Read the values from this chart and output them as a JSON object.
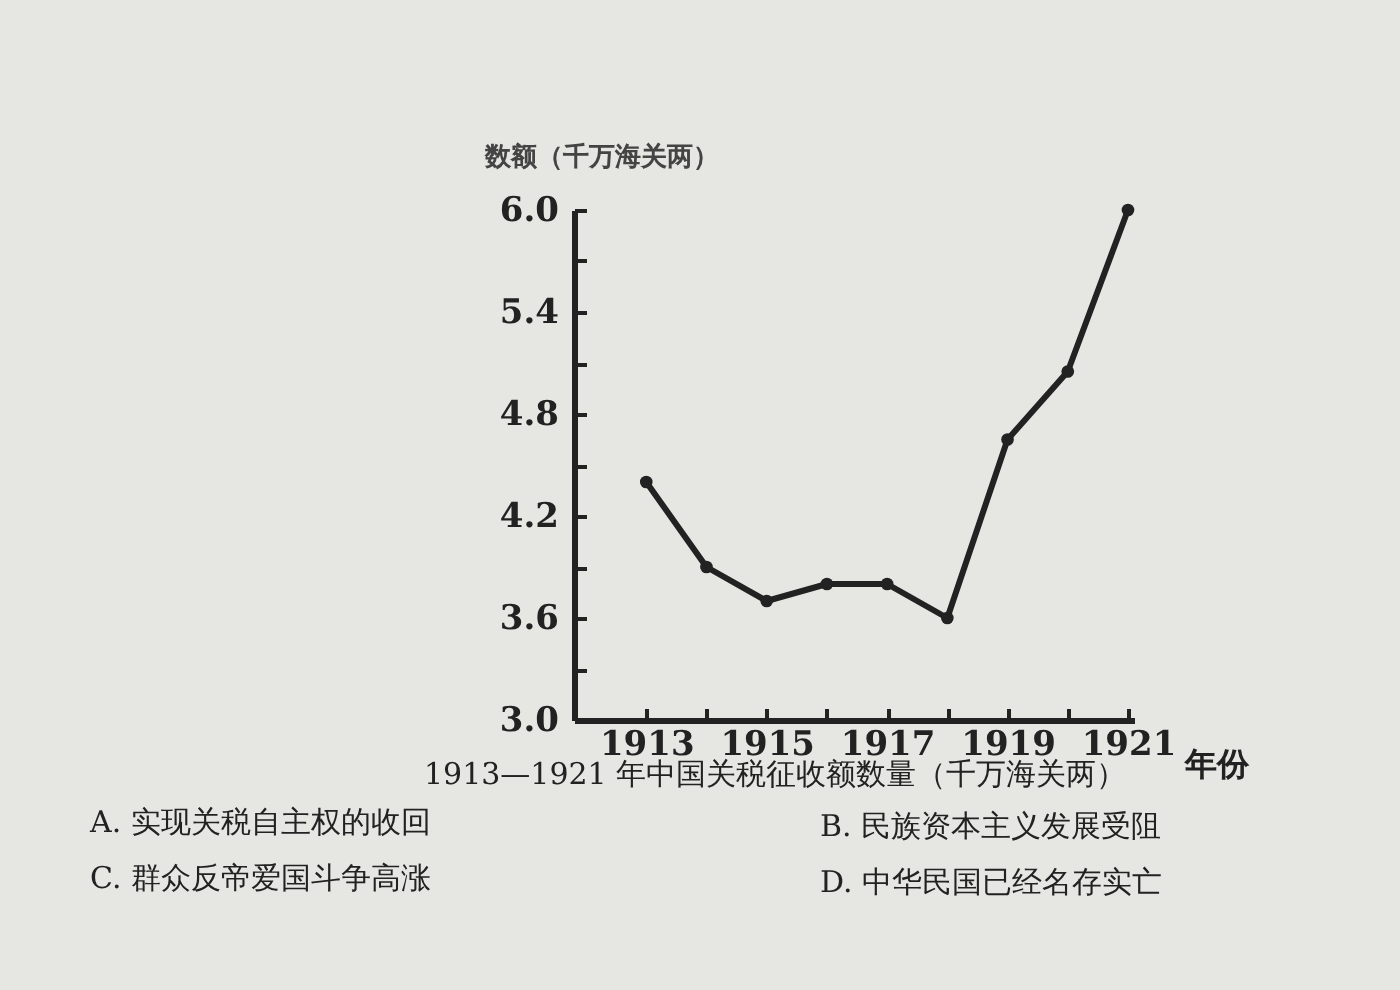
{
  "chart_data": {
    "type": "line",
    "ylabel": "数额（千万海关两）",
    "xlabel": "年份",
    "x": [
      1913,
      1914,
      1915,
      1916,
      1917,
      1918,
      1919,
      1920,
      1921
    ],
    "series": [
      {
        "color": "#222222",
        "values": [
          4.4,
          3.9,
          3.7,
          3.8,
          3.8,
          3.6,
          4.65,
          5.05,
          6.0
        ]
      }
    ],
    "xlim": [
      1911.8,
      1921.1
    ],
    "xticks": [
      1913,
      {
        "value": 1914,
        "label": null
      },
      1915,
      {
        "value": 1916,
        "label": null
      },
      1917,
      {
        "value": 1918,
        "label": null
      },
      1919,
      {
        "value": 1920,
        "label": null
      },
      1921
    ],
    "ylim": [
      3.0,
      6.0
    ],
    "yticks": [
      {
        "value": 3,
        "label": "3.0"
      },
      {
        "value": 3.3,
        "label": null
      },
      3.6,
      {
        "value": 3.9,
        "label": null
      },
      4.2,
      {
        "value": 4.5,
        "label": null
      },
      4.8,
      {
        "value": 5.1,
        "label": null
      },
      5.4,
      {
        "value": 5.7,
        "label": null
      },
      {
        "value": 6,
        "label": "6.0"
      }
    ],
    "marker": "circle",
    "line_style": "solid",
    "grid": false,
    "annotations": [
      "1913—1921 年中国关税征收额数量（千万海关两）",
      "A. 实现关税自主权的收回",
      "B. 民族资本主义发展受阻",
      "C. 群众反帝爱国斗争高涨",
      "D. 中华民国已经名存实亡"
    ]
  }
}
